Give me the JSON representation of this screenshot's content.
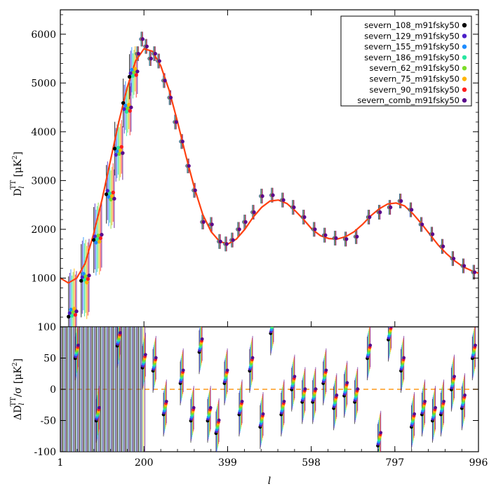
{
  "chart_data": [
    {
      "name": "spectrum",
      "type": "scatter",
      "xlabel": "l",
      "ylabel_main": "D",
      "ylabel_sub": "l",
      "ylabel_sup": "TT",
      "ylabel_unit": "[μK",
      "ylabel_unit_sup": "2",
      "ylabel_unit_close": "]",
      "xlim": [
        1,
        996
      ],
      "ylim": [
        0,
        6500
      ],
      "x_ticks": [
        "1",
        "200",
        "399",
        "598",
        "797",
        "996"
      ],
      "x_tick_values": [
        1,
        200,
        399,
        598,
        797,
        996
      ],
      "y_ticks": [
        "1000",
        "2000",
        "3000",
        "4000",
        "5000",
        "6000"
      ],
      "y_tick_values": [
        1000,
        2000,
        3000,
        4000,
        5000,
        6000
      ],
      "model_curve": {
        "color": "#ff4010",
        "x": [
          1,
          20,
          40,
          60,
          80,
          100,
          120,
          140,
          160,
          180,
          200,
          220,
          240,
          260,
          280,
          300,
          320,
          340,
          360,
          380,
          400,
          420,
          440,
          460,
          480,
          500,
          520,
          540,
          560,
          580,
          600,
          620,
          640,
          660,
          680,
          700,
          720,
          740,
          760,
          780,
          800,
          820,
          840,
          860,
          880,
          900,
          920,
          940,
          960,
          980,
          996
        ],
        "y": [
          1000,
          900,
          1000,
          1300,
          1900,
          2600,
          3400,
          4200,
          4900,
          5450,
          5700,
          5650,
          5350,
          4850,
          4200,
          3500,
          2850,
          2300,
          1950,
          1750,
          1700,
          1800,
          2000,
          2250,
          2450,
          2580,
          2600,
          2530,
          2380,
          2200,
          2000,
          1870,
          1810,
          1800,
          1850,
          1950,
          2100,
          2280,
          2420,
          2520,
          2540,
          2480,
          2320,
          2120,
          1900,
          1680,
          1500,
          1350,
          1230,
          1150,
          1100
        ]
      },
      "points": {
        "x": [
          30,
          60,
          90,
          120,
          140,
          160,
          175,
          185,
          195,
          205,
          215,
          225,
          235,
          248,
          262,
          275,
          290,
          305,
          320,
          340,
          360,
          380,
          395,
          410,
          425,
          440,
          460,
          480,
          505,
          530,
          555,
          580,
          605,
          630,
          655,
          680,
          705,
          735,
          760,
          785,
          810,
          835,
          860,
          885,
          910,
          935,
          960,
          985
        ],
        "y": [
          300,
          1000,
          1800,
          2700,
          3600,
          4500,
          5200,
          5600,
          5900,
          5750,
          5500,
          5600,
          5450,
          5050,
          4700,
          4200,
          3800,
          3300,
          2800,
          2150,
          2100,
          1750,
          1700,
          1780,
          2000,
          2150,
          2350,
          2680,
          2700,
          2600,
          2450,
          2250,
          2000,
          1880,
          1820,
          1800,
          1850,
          2250,
          2350,
          2450,
          2580,
          2400,
          2100,
          1900,
          1650,
          1400,
          1250,
          1120
        ]
      },
      "legend_placement": "top-right",
      "legend": [
        {
          "label": "severn_108_m91fsky50",
          "color": "#000000"
        },
        {
          "label": "severn_129_m91fsky50",
          "color": "#4b1ec8"
        },
        {
          "label": "severn_155_m91fsky50",
          "color": "#1e8cff"
        },
        {
          "label": "severn_186_m91fsky50",
          "color": "#28e6a0"
        },
        {
          "label": "severn_62_m91fsky50",
          "color": "#7ddc28"
        },
        {
          "label": "severn_75_m91fsky50",
          "color": "#ffb400"
        },
        {
          "label": "severn_90_m91fsky50",
          "color": "#ff1e1e"
        },
        {
          "label": "severn_comb_m91fsky50",
          "color": "#5a0a8c"
        }
      ]
    },
    {
      "name": "residuals",
      "type": "scatter",
      "ylabel_main": "ΔD",
      "ylabel_sub": "l",
      "ylabel_sup": "TT",
      "ylabel_tail": "/σ",
      "ylabel_unit": "[μK",
      "ylabel_unit_sup": "2",
      "ylabel_unit_close": "]",
      "xlim": [
        1,
        996
      ],
      "ylim": [
        -100,
        100
      ],
      "y_ticks": [
        "-100",
        "-50",
        "0",
        "50",
        "100"
      ],
      "y_tick_values": [
        -100,
        -50,
        0,
        50,
        100
      ],
      "zero_line_color": "#ff9a1a",
      "points": {
        "x": [
          40,
          90,
          140,
          200,
          225,
          250,
          290,
          315,
          335,
          355,
          375,
          395,
          430,
          455,
          480,
          505,
          530,
          555,
          580,
          605,
          630,
          655,
          680,
          705,
          735,
          760,
          785,
          815,
          840,
          865,
          890,
          910,
          935,
          960,
          985
        ],
        "y": [
          60,
          -40,
          80,
          45,
          40,
          -30,
          20,
          -40,
          70,
          -40,
          -60,
          20,
          -30,
          40,
          -50,
          100,
          -30,
          10,
          -10,
          -10,
          20,
          -20,
          0,
          -10,
          60,
          -80,
          90,
          40,
          -50,
          -30,
          -40,
          -30,
          10,
          -20,
          60
        ]
      }
    }
  ]
}
